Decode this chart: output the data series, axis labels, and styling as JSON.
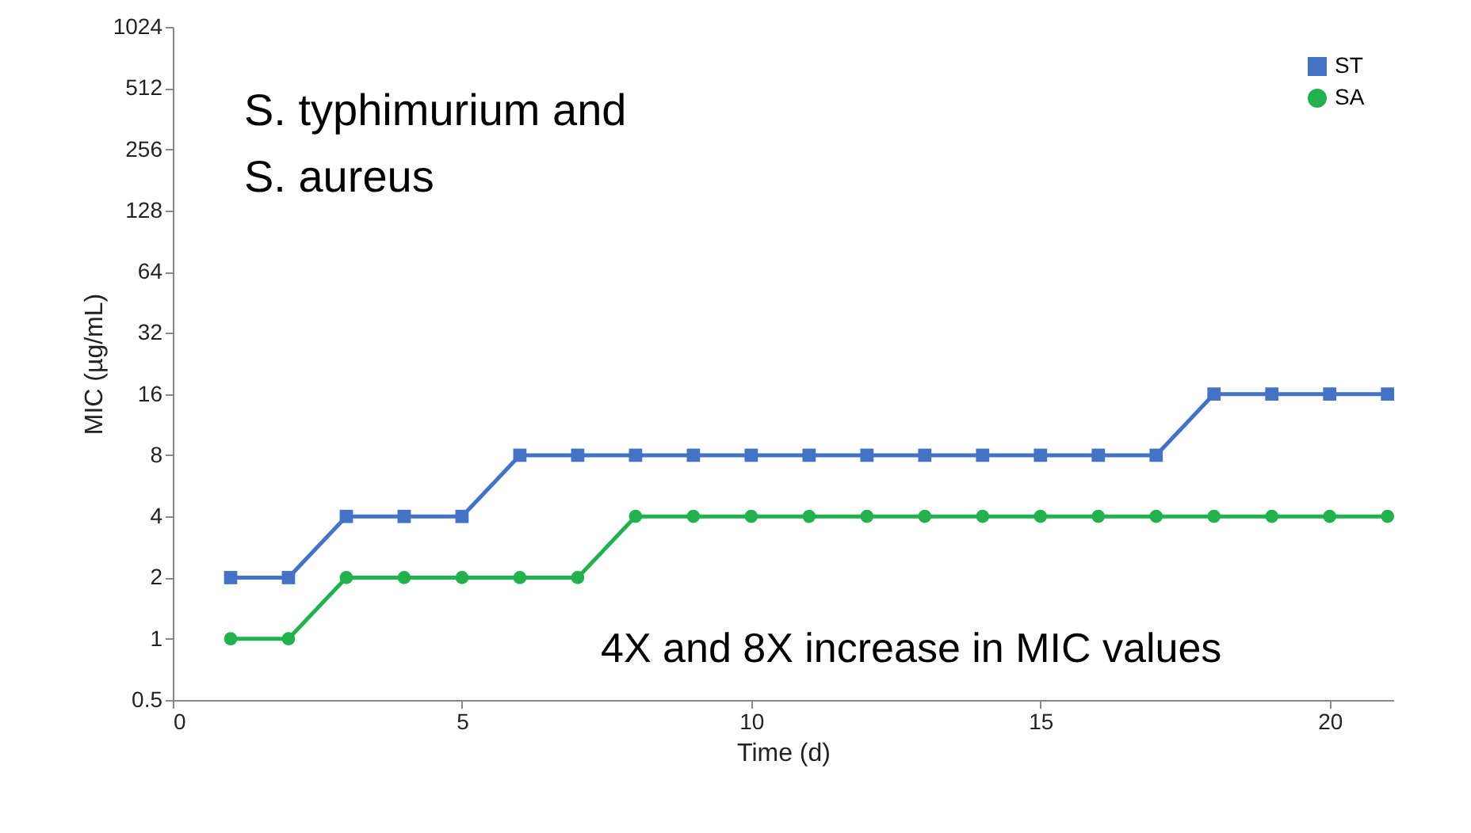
{
  "chart_data": {
    "type": "step",
    "xlabel": "Time (d)",
    "ylabel": "MIC (µg/mL)",
    "x": [
      1,
      2,
      3,
      4,
      5,
      6,
      7,
      8,
      9,
      10,
      11,
      12,
      13,
      14,
      15,
      16,
      17,
      18,
      19,
      20,
      21
    ],
    "series": [
      {
        "name": "ST",
        "color": "#4472c4",
        "marker": "square",
        "values": [
          2,
          2,
          4,
          4,
          4,
          8,
          8,
          8,
          8,
          8,
          8,
          8,
          8,
          8,
          8,
          8,
          8,
          16,
          16,
          16,
          16
        ]
      },
      {
        "name": "SA",
        "color": "#22b14c",
        "marker": "circle",
        "values": [
          1,
          1,
          2,
          2,
          2,
          2,
          2,
          4,
          4,
          4,
          4,
          4,
          4,
          4,
          4,
          4,
          4,
          4,
          4,
          4,
          4
        ]
      }
    ],
    "log": "y",
    "xlim": [
      0,
      21.1
    ],
    "xticks": [
      0,
      5,
      10,
      15,
      20
    ],
    "ylim": [
      0.5,
      1024
    ],
    "yticks": [
      0.5,
      1,
      2,
      4,
      8,
      16,
      32,
      64,
      128,
      256,
      512,
      1024
    ],
    "grid": false,
    "legend": "top right",
    "line_style": "solid",
    "annotations": [
      "S. typhimurium and\nS. aureus",
      "4X and 8X increase in MIC values"
    ]
  }
}
